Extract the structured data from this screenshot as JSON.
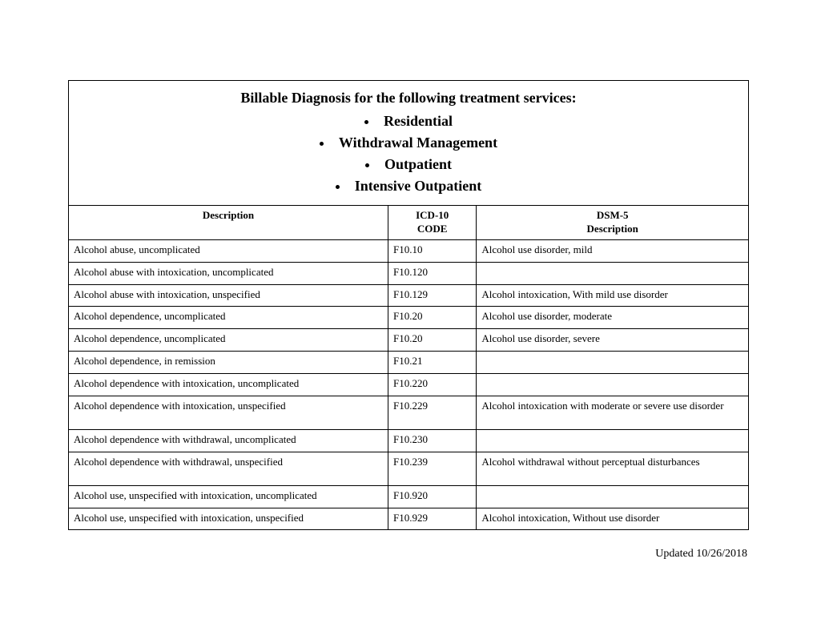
{
  "header": {
    "title": "Billable Diagnosis for the following treatment services:",
    "bullets": [
      "Residential",
      "Withdrawal Management",
      "Outpatient",
      "Intensive Outpatient"
    ]
  },
  "columns": {
    "description": "Description",
    "icd10_line1": "ICD-10",
    "icd10_line2": "CODE",
    "dsm5_line1": "DSM-5",
    "dsm5_line2": "Description"
  },
  "rows": [
    {
      "description": "Alcohol abuse, uncomplicated",
      "icd10": "F10.10",
      "dsm5": "Alcohol use disorder, mild",
      "tall": false
    },
    {
      "description": "Alcohol abuse with intoxication, uncomplicated",
      "icd10": "F10.120",
      "dsm5": "",
      "tall": false
    },
    {
      "description": "Alcohol abuse with intoxication, unspecified",
      "icd10": "F10.129",
      "dsm5": "Alcohol intoxication, With mild use disorder",
      "tall": false
    },
    {
      "description": "Alcohol dependence, uncomplicated",
      "icd10": "F10.20",
      "dsm5": "Alcohol use disorder, moderate",
      "tall": false
    },
    {
      "description": "Alcohol dependence, uncomplicated",
      "icd10": "F10.20",
      "dsm5": "Alcohol use disorder, severe",
      "tall": false
    },
    {
      "description": "Alcohol dependence, in remission",
      "icd10": "F10.21",
      "dsm5": "",
      "tall": false
    },
    {
      "description": "Alcohol dependence with intoxication, uncomplicated",
      "icd10": "F10.220",
      "dsm5": "",
      "tall": false
    },
    {
      "description": "Alcohol dependence with intoxication, unspecified",
      "icd10": "F10.229",
      "dsm5": "Alcohol intoxication with moderate or severe use disorder",
      "tall": true
    },
    {
      "description": "Alcohol dependence with withdrawal, uncomplicated",
      "icd10": "F10.230",
      "dsm5": "",
      "tall": false
    },
    {
      "description": "Alcohol dependence with withdrawal, unspecified",
      "icd10": "F10.239",
      "dsm5": "Alcohol withdrawal without perceptual disturbances",
      "tall": true
    },
    {
      "description": "Alcohol use, unspecified with intoxication, uncomplicated",
      "icd10": "F10.920",
      "dsm5": "",
      "tall": false
    },
    {
      "description": "Alcohol use, unspecified with intoxication, unspecified",
      "icd10": "F10.929",
      "dsm5": "Alcohol intoxication, Without use disorder",
      "tall": false
    }
  ],
  "footer": "Updated 10/26/2018"
}
